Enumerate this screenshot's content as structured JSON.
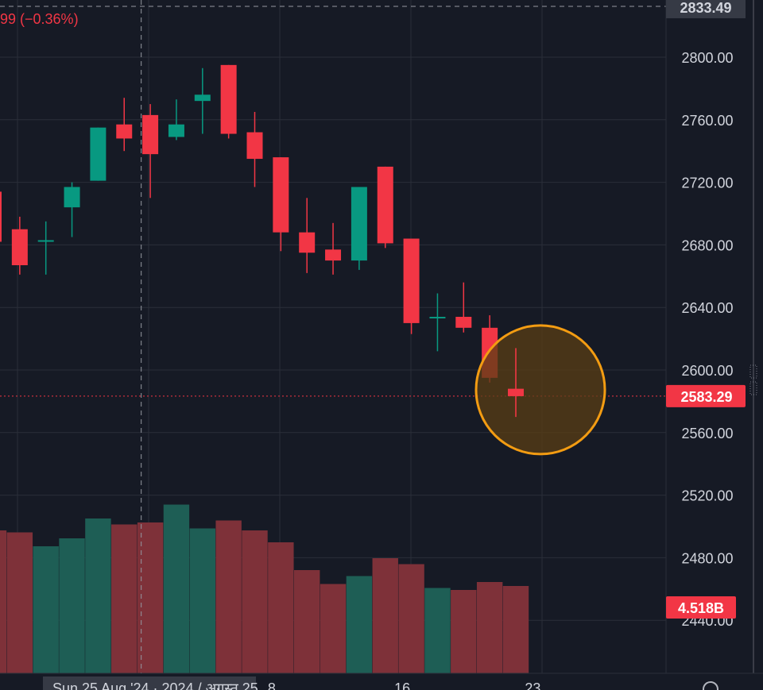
{
  "header": {
    "change_text": "99 (−0.36%)"
  },
  "colors": {
    "background": "#161a25",
    "up": "#089981",
    "down": "#f23645",
    "up_volume": "#1e5e55",
    "down_volume": "#7e3139",
    "grid": "#2a2e39",
    "axis_text": "#d1d4dc",
    "highlight_circle_stroke": "#f39c12",
    "highlight_circle_fill": "#5a3d14"
  },
  "bottom_axis": {
    "date_label": "Sun 25 Aug '24 · 2024 / अगस्त 25",
    "icon": "settings-icon"
  },
  "chart_data": {
    "type": "candlestick",
    "ylim": [
      2420,
      2840
    ],
    "y_ticks": [
      "2800.00",
      "2760.00",
      "2720.00",
      "2680.00",
      "2640.00",
      "2600.00",
      "2560.00",
      "2520.00",
      "2480.00",
      "2440.00"
    ],
    "y_tick_values": [
      2800,
      2760,
      2720,
      2680,
      2640,
      2600,
      2560,
      2520,
      2480,
      2440
    ],
    "x_ticks": [
      {
        "label": "8",
        "index": 10.5
      },
      {
        "label": "16",
        "index": 15.5
      },
      {
        "label": "23",
        "index": 20.5
      }
    ],
    "crosshair": {
      "index": 5.5,
      "price_label": "2833.49",
      "price": 2833.49
    },
    "last_price": {
      "label": "2583.29",
      "value": 2583.29
    },
    "volume_label": "4.518B",
    "candles": [
      {
        "open": 2714,
        "high": 2716,
        "close": 2682,
        "low": 2680,
        "volume_level": 0.72
      },
      {
        "open": 2690,
        "high": 2698,
        "close": 2667,
        "low": 2661,
        "volume_level": 0.71
      },
      {
        "open": 2683,
        "high": 2695,
        "close": 2683,
        "low": 2661,
        "volume_level": 0.64
      },
      {
        "open": 2704,
        "high": 2720,
        "close": 2717,
        "low": 2685,
        "volume_level": 0.68
      },
      {
        "open": 2721,
        "high": 2755,
        "close": 2755,
        "low": 2721,
        "volume_level": 0.78
      },
      {
        "open": 2757,
        "high": 2774,
        "close": 2748,
        "low": 2740,
        "volume_level": 0.75
      },
      {
        "open": 2763,
        "high": 2770,
        "close": 2738,
        "low": 2710,
        "volume_level": 0.76
      },
      {
        "open": 2749,
        "high": 2773,
        "close": 2757,
        "low": 2747,
        "volume_level": 0.85
      },
      {
        "open": 2772,
        "high": 2793,
        "close": 2776,
        "low": 2751,
        "volume_level": 0.73
      },
      {
        "open": 2795,
        "high": 2795,
        "close": 2751,
        "low": 2748,
        "volume_level": 0.77
      },
      {
        "open": 2752,
        "high": 2765,
        "close": 2735,
        "low": 2717,
        "volume_level": 0.72
      },
      {
        "open": 2736,
        "high": 2736,
        "close": 2688,
        "low": 2676,
        "volume_level": 0.66
      },
      {
        "open": 2688,
        "high": 2710,
        "close": 2675,
        "low": 2662,
        "volume_level": 0.52
      },
      {
        "open": 2677,
        "high": 2694,
        "close": 2670,
        "low": 2661,
        "volume_level": 0.45
      },
      {
        "open": 2670,
        "high": 2717,
        "close": 2717,
        "low": 2664,
        "volume_level": 0.49
      },
      {
        "open": 2730,
        "high": 2730,
        "close": 2681,
        "low": 2678,
        "volume_level": 0.58
      },
      {
        "open": 2684,
        "high": 2684,
        "close": 2630,
        "low": 2623,
        "volume_level": 0.55
      },
      {
        "open": 2634,
        "high": 2649,
        "close": 2634,
        "low": 2612,
        "volume_level": 0.43
      },
      {
        "open": 2634,
        "high": 2656,
        "close": 2627,
        "low": 2624,
        "volume_level": 0.42
      },
      {
        "open": 2627,
        "high": 2635,
        "close": 2595,
        "low": 2592,
        "volume_level": 0.46
      },
      {
        "open": 2588,
        "high": 2614,
        "close": 2583.29,
        "low": 2570,
        "volume_level": 0.44
      }
    ]
  }
}
